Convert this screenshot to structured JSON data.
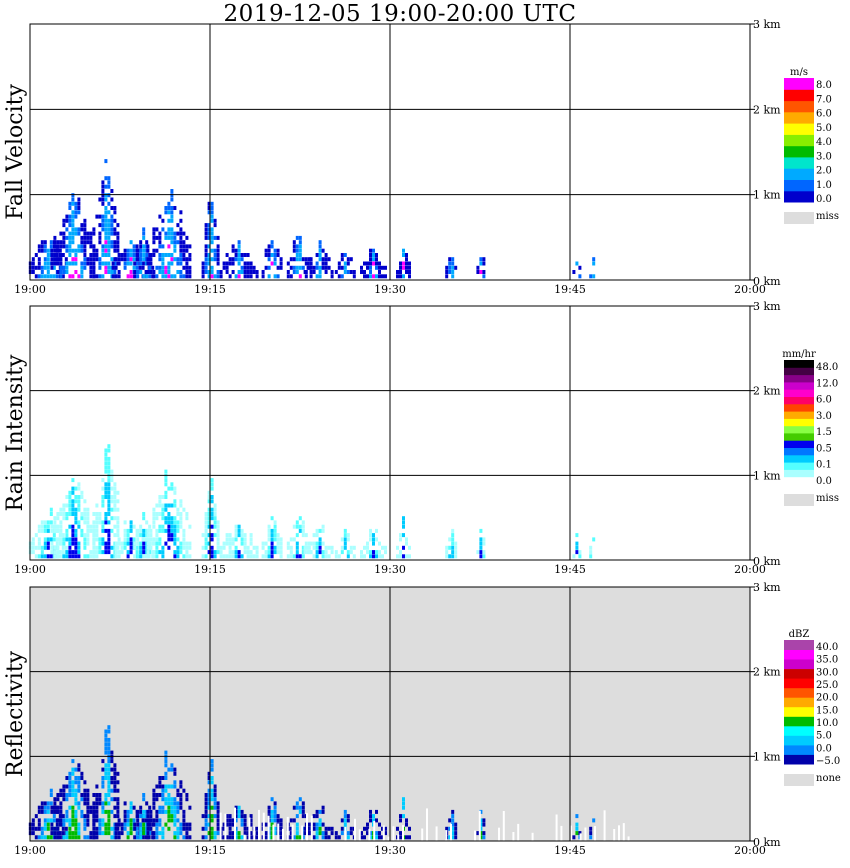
{
  "title": "2019-12-05   19:00-20:00 UTC",
  "chart_data": [
    {
      "type": "heatmap",
      "ylabel": "Fall Velocity",
      "x_ticks": [
        "19:00",
        "19:15",
        "19:30",
        "19:45",
        "20:00"
      ],
      "y_ticks": [
        "0 km",
        "1 km",
        "2 km",
        "3 km"
      ],
      "xlim": [
        "19:00",
        "20:00"
      ],
      "ylim_km": [
        0,
        3.0
      ],
      "background": "#ffffff",
      "colorbar": {
        "unit": "m/s",
        "colors": [
          "#0000cc",
          "#0066ff",
          "#00aaff",
          "#00e5cc",
          "#00bb00",
          "#88ee00",
          "#ffff00",
          "#ffaa00",
          "#ff5500",
          "#ff0000",
          "#ff00ff"
        ],
        "labels": [
          "8.0",
          "7.0",
          "6.0",
          "5.0",
          "4.0",
          "3.0",
          "2.0",
          "1.0",
          "0.0"
        ],
        "miss_label": "miss"
      }
    },
    {
      "type": "heatmap",
      "ylabel": "Rain Intensity",
      "x_ticks": [
        "19:00",
        "19:15",
        "19:30",
        "19:45",
        "20:00"
      ],
      "y_ticks": [
        "0 km",
        "1 km",
        "2 km",
        "3 km"
      ],
      "xlim": [
        "19:00",
        "20:00"
      ],
      "ylim_km": [
        0,
        3.0
      ],
      "background": "#ffffff",
      "colorbar": {
        "unit": "mm/hr",
        "colors": [
          "#ffffff",
          "#aaffff",
          "#55ffff",
          "#00ccff",
          "#0077ff",
          "#0000ee",
          "#44cc00",
          "#88ff44",
          "#ffff00",
          "#ffaa00",
          "#ff4400",
          "#ff0066",
          "#ff00cc",
          "#cc00cc",
          "#880088",
          "#440044",
          "#000000"
        ],
        "labels": [
          "48.0",
          "12.0",
          "6.0",
          "3.0",
          "1.5",
          "0.5",
          "0.1",
          "0.0"
        ],
        "miss_label": "miss"
      }
    },
    {
      "type": "heatmap",
      "ylabel": "Reflectivity",
      "x_ticks": [
        "19:00",
        "19:15",
        "19:30",
        "19:45",
        "20:00"
      ],
      "y_ticks": [
        "0 km",
        "1 km",
        "2 km",
        "3 km"
      ],
      "xlim": [
        "19:00",
        "20:00"
      ],
      "ylim_km": [
        0,
        3.0
      ],
      "background": "#dddddd",
      "colorbar": {
        "unit": "dBZ",
        "colors": [
          "#0000aa",
          "#0088ff",
          "#00ccff",
          "#00ffff",
          "#00bb00",
          "#ffff00",
          "#ffaa00",
          "#ff5500",
          "#ff0000",
          "#cc0000",
          "#cc00cc",
          "#ff00ff",
          "#aa44aa"
        ],
        "labels": [
          "40.0",
          "35.0",
          "30.0",
          "25.0",
          "20.0",
          "15.0",
          "10.0",
          "5.0",
          "0.0",
          "−5.0"
        ],
        "miss_label": "none"
      }
    }
  ]
}
